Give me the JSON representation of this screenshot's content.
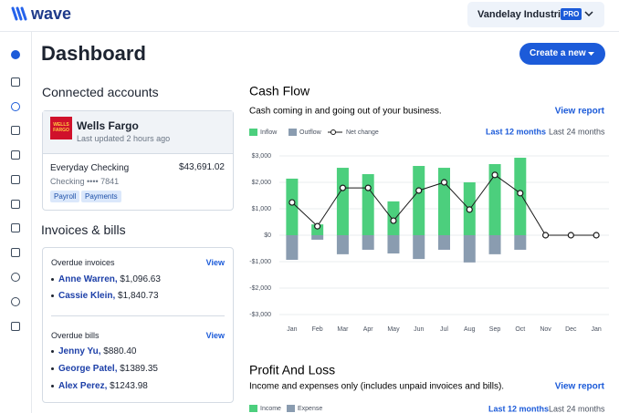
{
  "header": {
    "logo": "wave",
    "company": "Vandelay Industries",
    "badge": "PRO"
  },
  "page_title": "Dashboard",
  "create_button": "Create a new",
  "connected_accounts": {
    "title": "Connected accounts",
    "bank": "Wells Fargo",
    "bank_logo": "WELLS FARGO",
    "updated": "Last updated 2 hours ago",
    "account": "Everyday Checking",
    "balance": "$43,691.02",
    "number": "Checking •••• 7841",
    "tags": [
      "Payroll",
      "Payments"
    ]
  },
  "invoices_bills": {
    "title": "Invoices & bills",
    "overdue_invoices": {
      "label": "Overdue invoices",
      "link": "View",
      "items": [
        {
          "name": "Anne Warren,",
          "amount": "$1,096.63"
        },
        {
          "name": "Cassie Klein,",
          "amount": "$1,840.73"
        }
      ]
    },
    "overdue_bills": {
      "label": "Overdue bills",
      "link": "View",
      "items": [
        {
          "name": "Jenny Yu,",
          "amount": "$880.40"
        },
        {
          "name": "George Patel,",
          "amount": "$1389.35"
        },
        {
          "name": "Alex Perez,",
          "amount": "$1243.98"
        }
      ]
    }
  },
  "chart_data": {
    "type": "bar",
    "title": "Cash Flow",
    "subtitle": "Cash coming in and going out of your business.",
    "link": "View report",
    "ranges": [
      "Last 12 months",
      "Last 24 months"
    ],
    "categories": [
      "Jan",
      "Feb",
      "Mar",
      "Apr",
      "May",
      "Jun",
      "Jul",
      "Aug",
      "Sep",
      "Oct",
      "Nov",
      "Dec",
      "Jan"
    ],
    "series": [
      {
        "name": "Inflow",
        "color": "#4ccf7d",
        "values": [
          2140,
          410,
          2550,
          2310,
          1280,
          2620,
          2550,
          2000,
          2690,
          2930,
          0,
          0,
          0
        ]
      },
      {
        "name": "Outflow",
        "color": "#8a9cb0",
        "values": [
          -930,
          -170,
          -720,
          -550,
          -690,
          -900,
          -550,
          -1030,
          -720,
          -550,
          0,
          0,
          0
        ]
      },
      {
        "name": "Net change",
        "type": "line",
        "color": "#1a1a1a",
        "values": [
          1240,
          340,
          1790,
          1790,
          550,
          1690,
          2000,
          970,
          2280,
          1590,
          0,
          0,
          0
        ]
      }
    ],
    "ylim": [
      -3000,
      3000
    ],
    "yticks": [
      {
        "value": 3000,
        "label": "$3,000"
      },
      {
        "value": 2000,
        "label": "$2,000"
      },
      {
        "value": 1000,
        "label": "$1,000"
      },
      {
        "value": 0,
        "label": "$0"
      },
      {
        "value": -1000,
        "label": "-$1,000"
      },
      {
        "value": -2000,
        "label": "-$2,000"
      },
      {
        "value": -3000,
        "label": "-$3,000"
      }
    ],
    "grid": true
  },
  "profit_loss": {
    "title": "Profit And Loss",
    "subtitle": "Income and expenses only (includes unpaid invoices and bills).",
    "link": "View report",
    "ranges": [
      "Last 12 months",
      "Last 24 months"
    ],
    "legend": [
      {
        "name": "Income",
        "color": "#4ccf7d"
      },
      {
        "name": "Expense",
        "color": "#8a9cb0"
      }
    ]
  }
}
